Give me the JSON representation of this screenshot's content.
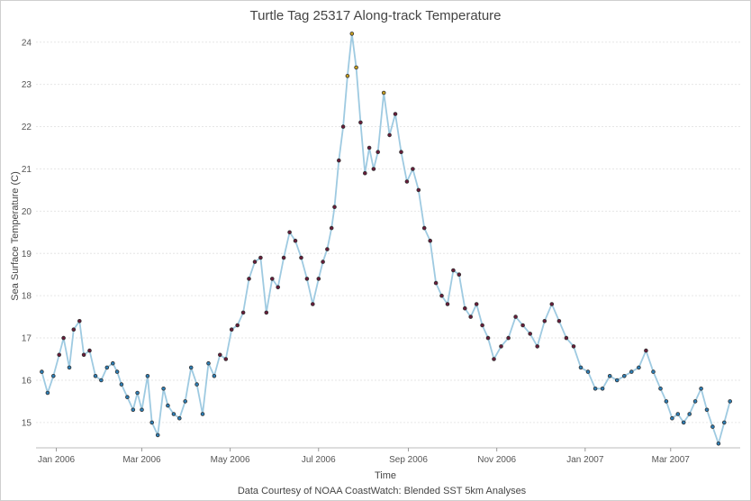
{
  "chart_data": {
    "type": "line",
    "title": "Turtle Tag 25317 Along-track Temperature",
    "xlabel": "Time",
    "ylabel": "Sea Surface Temperature (C)",
    "credit": "Data Courtesy of NOAA CoastWatch: Blended SST 5km Analyses",
    "xlim": [
      "2005-12-18",
      "2007-04-18"
    ],
    "ylim": [
      14.4,
      24.4
    ],
    "grid": "horizontal",
    "legend": "none",
    "x_ticks": [
      {
        "date": "2006-01-01",
        "label": "Jan 2006"
      },
      {
        "date": "2006-03-01",
        "label": "Mar 2006"
      },
      {
        "date": "2006-05-01",
        "label": "May 2006"
      },
      {
        "date": "2006-07-01",
        "label": "Jul 2006"
      },
      {
        "date": "2006-09-01",
        "label": "Sep 2006"
      },
      {
        "date": "2006-11-01",
        "label": "Nov 2006"
      },
      {
        "date": "2007-01-01",
        "label": "Jan 2007"
      },
      {
        "date": "2007-03-01",
        "label": "Mar 2007"
      }
    ],
    "y_ticks": [
      15,
      16,
      17,
      18,
      19,
      20,
      21,
      22,
      23,
      24
    ],
    "colors": {
      "line": "#9ecae1",
      "point_stroke": "#333333",
      "cold": "#2c7fb8",
      "mid": "#6a1b3a",
      "warm": "#c8a020"
    },
    "series": [
      {
        "x": [
          "2005-12-22",
          "2005-12-26",
          "2005-12-30",
          "2006-01-03",
          "2006-01-06",
          "2006-01-10",
          "2006-01-13",
          "2006-01-17",
          "2006-01-20",
          "2006-01-24",
          "2006-01-28",
          "2006-02-01",
          "2006-02-05",
          "2006-02-09",
          "2006-02-12",
          "2006-02-15",
          "2006-02-19",
          "2006-02-23",
          "2006-02-26",
          "2006-03-01",
          "2006-03-05",
          "2006-03-08",
          "2006-03-12",
          "2006-03-16",
          "2006-03-19",
          "2006-03-23",
          "2006-03-27",
          "2006-03-31",
          "2006-04-04",
          "2006-04-08",
          "2006-04-12",
          "2006-04-16",
          "2006-04-20",
          "2006-04-24",
          "2006-04-28",
          "2006-05-02",
          "2006-05-06",
          "2006-05-10",
          "2006-05-14",
          "2006-05-18",
          "2006-05-22",
          "2006-05-26",
          "2006-05-30",
          "2006-06-03",
          "2006-06-07",
          "2006-06-11",
          "2006-06-15",
          "2006-06-19",
          "2006-06-23",
          "2006-06-27",
          "2006-07-01",
          "2006-07-04",
          "2006-07-07",
          "2006-07-10",
          "2006-07-12",
          "2006-07-15",
          "2006-07-18",
          "2006-07-21",
          "2006-07-24",
          "2006-07-27",
          "2006-07-30",
          "2006-08-02",
          "2006-08-05",
          "2006-08-08",
          "2006-08-11",
          "2006-08-15",
          "2006-08-19",
          "2006-08-23",
          "2006-08-27",
          "2006-08-31",
          "2006-09-04",
          "2006-09-08",
          "2006-09-12",
          "2006-09-16",
          "2006-09-20",
          "2006-09-24",
          "2006-09-28",
          "2006-10-02",
          "2006-10-06",
          "2006-10-10",
          "2006-10-14",
          "2006-10-18",
          "2006-10-22",
          "2006-10-26",
          "2006-10-30",
          "2006-11-04",
          "2006-11-09",
          "2006-11-14",
          "2006-11-19",
          "2006-11-24",
          "2006-11-29",
          "2006-12-04",
          "2006-12-09",
          "2006-12-14",
          "2006-12-19",
          "2006-12-24",
          "2006-12-29",
          "2007-01-03",
          "2007-01-08",
          "2007-01-13",
          "2007-01-18",
          "2007-01-23",
          "2007-01-28",
          "2007-02-02",
          "2007-02-07",
          "2007-02-12",
          "2007-02-17",
          "2007-02-22",
          "2007-02-26",
          "2007-03-02",
          "2007-03-06",
          "2007-03-10",
          "2007-03-14",
          "2007-03-18",
          "2007-03-22",
          "2007-03-26",
          "2007-03-30",
          "2007-04-03",
          "2007-04-07",
          "2007-04-11"
        ],
        "y": [
          16.2,
          15.7,
          16.1,
          16.6,
          17.0,
          16.3,
          17.2,
          17.4,
          16.6,
          16.7,
          16.1,
          16.0,
          16.3,
          16.4,
          16.2,
          15.9,
          15.6,
          15.3,
          15.7,
          15.3,
          16.1,
          15.0,
          14.7,
          15.8,
          15.4,
          15.2,
          15.1,
          15.5,
          16.3,
          15.9,
          15.2,
          16.4,
          16.1,
          16.6,
          16.5,
          17.2,
          17.3,
          17.6,
          18.4,
          18.8,
          18.9,
          17.6,
          18.4,
          18.2,
          18.9,
          19.5,
          19.3,
          18.9,
          18.4,
          17.8,
          18.4,
          18.8,
          19.1,
          19.6,
          20.1,
          21.2,
          22.0,
          23.2,
          24.2,
          23.4,
          22.1,
          20.9,
          21.5,
          21.0,
          21.4,
          22.8,
          21.8,
          22.3,
          21.4,
          20.7,
          21.0,
          20.5,
          19.6,
          19.3,
          18.3,
          18.0,
          17.8,
          18.6,
          18.5,
          17.7,
          17.5,
          17.8,
          17.3,
          17.0,
          16.5,
          16.8,
          17.0,
          17.5,
          17.3,
          17.1,
          16.8,
          17.4,
          17.8,
          17.4,
          17.0,
          16.8,
          16.3,
          16.2,
          15.8,
          15.8,
          16.1,
          16.0,
          16.1,
          16.2,
          16.3,
          16.7,
          16.2,
          15.8,
          15.5,
          15.1,
          15.2,
          15.0,
          15.2,
          15.5,
          15.8,
          15.3,
          14.9,
          14.5,
          15.0,
          15.5
        ]
      }
    ]
  }
}
